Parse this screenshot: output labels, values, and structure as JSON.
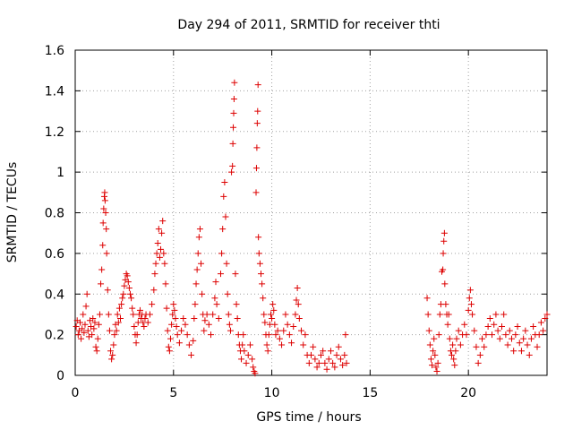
{
  "chart_data": {
    "type": "scatter",
    "title": "Day 294 of 2011, SRMTID for receiver thti",
    "xlabel": "GPS time / hours",
    "ylabel": "SRMTID / TECUs",
    "xlim": [
      0,
      24
    ],
    "ylim": [
      0,
      1.6
    ],
    "x_ticks": [
      0,
      5,
      10,
      15,
      20
    ],
    "x_tick_labels": [
      "0",
      "5",
      "10",
      "15",
      "20"
    ],
    "y_ticks": [
      0,
      0.2,
      0.4,
      0.6,
      0.8,
      1.0,
      1.2,
      1.4,
      1.6
    ],
    "y_tick_labels": [
      "0",
      "0.2",
      "0.4",
      "0.6",
      "0.8",
      "1",
      "1.2",
      "1.4",
      "1.6"
    ],
    "grid": true,
    "marker": "+",
    "color": "#dd0000",
    "series": [
      {
        "name": "SRMTID",
        "points": [
          [
            0.05,
            0.24
          ],
          [
            0.1,
            0.27
          ],
          [
            0.15,
            0.2
          ],
          [
            0.2,
            0.22
          ],
          [
            0.25,
            0.26
          ],
          [
            0.3,
            0.18
          ],
          [
            0.35,
            0.23
          ],
          [
            0.4,
            0.3
          ],
          [
            0.45,
            0.21
          ],
          [
            0.5,
            0.25
          ],
          [
            0.55,
            0.34
          ],
          [
            0.6,
            0.4
          ],
          [
            0.65,
            0.22
          ],
          [
            0.7,
            0.19
          ],
          [
            0.75,
            0.27
          ],
          [
            0.8,
            0.24
          ],
          [
            0.85,
            0.2
          ],
          [
            0.9,
            0.28
          ],
          [
            0.95,
            0.23
          ],
          [
            1.0,
            0.26
          ],
          [
            1.05,
            0.14
          ],
          [
            1.1,
            0.12
          ],
          [
            1.15,
            0.18
          ],
          [
            1.2,
            0.25
          ],
          [
            1.25,
            0.3
          ],
          [
            1.3,
            0.45
          ],
          [
            1.35,
            0.52
          ],
          [
            1.4,
            0.64
          ],
          [
            1.42,
            0.75
          ],
          [
            1.45,
            0.82
          ],
          [
            1.48,
            0.88
          ],
          [
            1.5,
            0.9
          ],
          [
            1.52,
            0.86
          ],
          [
            1.55,
            0.8
          ],
          [
            1.58,
            0.72
          ],
          [
            1.6,
            0.6
          ],
          [
            1.65,
            0.42
          ],
          [
            1.7,
            0.3
          ],
          [
            1.75,
            0.22
          ],
          [
            1.8,
            0.12
          ],
          [
            1.85,
            0.08
          ],
          [
            1.9,
            0.1
          ],
          [
            1.95,
            0.15
          ],
          [
            2.0,
            0.2
          ],
          [
            2.05,
            0.25
          ],
          [
            2.1,
            0.22
          ],
          [
            2.15,
            0.3
          ],
          [
            2.2,
            0.26
          ],
          [
            2.25,
            0.33
          ],
          [
            2.3,
            0.28
          ],
          [
            2.35,
            0.35
          ],
          [
            2.4,
            0.38
          ],
          [
            2.45,
            0.4
          ],
          [
            2.5,
            0.44
          ],
          [
            2.55,
            0.47
          ],
          [
            2.6,
            0.5
          ],
          [
            2.65,
            0.49
          ],
          [
            2.7,
            0.46
          ],
          [
            2.75,
            0.43
          ],
          [
            2.8,
            0.4
          ],
          [
            2.85,
            0.38
          ],
          [
            2.9,
            0.33
          ],
          [
            2.95,
            0.3
          ],
          [
            3.0,
            0.24
          ],
          [
            3.05,
            0.2
          ],
          [
            3.1,
            0.16
          ],
          [
            3.15,
            0.2
          ],
          [
            3.2,
            0.26
          ],
          [
            3.25,
            0.3
          ],
          [
            3.3,
            0.32
          ],
          [
            3.35,
            0.28
          ],
          [
            3.4,
            0.3
          ],
          [
            3.45,
            0.26
          ],
          [
            3.5,
            0.24
          ],
          [
            3.55,
            0.28
          ],
          [
            3.6,
            0.3
          ],
          [
            3.7,
            0.26
          ],
          [
            3.8,
            0.3
          ],
          [
            3.9,
            0.35
          ],
          [
            4.0,
            0.42
          ],
          [
            4.05,
            0.5
          ],
          [
            4.1,
            0.55
          ],
          [
            4.15,
            0.6
          ],
          [
            4.2,
            0.65
          ],
          [
            4.25,
            0.72
          ],
          [
            4.3,
            0.58
          ],
          [
            4.35,
            0.62
          ],
          [
            4.4,
            0.7
          ],
          [
            4.45,
            0.76
          ],
          [
            4.5,
            0.6
          ],
          [
            4.55,
            0.55
          ],
          [
            4.6,
            0.45
          ],
          [
            4.65,
            0.33
          ],
          [
            4.7,
            0.22
          ],
          [
            4.75,
            0.14
          ],
          [
            4.8,
            0.12
          ],
          [
            4.85,
            0.18
          ],
          [
            4.9,
            0.25
          ],
          [
            4.95,
            0.3
          ],
          [
            5.0,
            0.35
          ],
          [
            5.05,
            0.32
          ],
          [
            5.1,
            0.28
          ],
          [
            5.15,
            0.24
          ],
          [
            5.2,
            0.2
          ],
          [
            5.3,
            0.16
          ],
          [
            5.4,
            0.22
          ],
          [
            5.5,
            0.28
          ],
          [
            5.6,
            0.25
          ],
          [
            5.7,
            0.2
          ],
          [
            5.8,
            0.15
          ],
          [
            5.9,
            0.1
          ],
          [
            6.0,
            0.17
          ],
          [
            6.05,
            0.28
          ],
          [
            6.1,
            0.35
          ],
          [
            6.15,
            0.45
          ],
          [
            6.2,
            0.52
          ],
          [
            6.25,
            0.6
          ],
          [
            6.3,
            0.68
          ],
          [
            6.35,
            0.72
          ],
          [
            6.4,
            0.55
          ],
          [
            6.45,
            0.4
          ],
          [
            6.5,
            0.3
          ],
          [
            6.55,
            0.22
          ],
          [
            6.6,
            0.27
          ],
          [
            6.7,
            0.3
          ],
          [
            6.8,
            0.25
          ],
          [
            6.9,
            0.2
          ],
          [
            7.0,
            0.3
          ],
          [
            7.1,
            0.38
          ],
          [
            7.15,
            0.46
          ],
          [
            7.2,
            0.35
          ],
          [
            7.3,
            0.28
          ],
          [
            7.4,
            0.5
          ],
          [
            7.45,
            0.6
          ],
          [
            7.5,
            0.72
          ],
          [
            7.55,
            0.88
          ],
          [
            7.6,
            0.95
          ],
          [
            7.65,
            0.78
          ],
          [
            7.7,
            0.55
          ],
          [
            7.75,
            0.4
          ],
          [
            7.8,
            0.3
          ],
          [
            7.85,
            0.25
          ],
          [
            7.9,
            0.22
          ],
          [
            7.95,
            1.0
          ],
          [
            8.0,
            1.03
          ],
          [
            8.02,
            1.14
          ],
          [
            8.04,
            1.22
          ],
          [
            8.06,
            1.29
          ],
          [
            8.08,
            1.36
          ],
          [
            8.1,
            1.44
          ],
          [
            8.15,
            0.5
          ],
          [
            8.2,
            0.35
          ],
          [
            8.25,
            0.28
          ],
          [
            8.3,
            0.2
          ],
          [
            8.35,
            0.15
          ],
          [
            8.4,
            0.12
          ],
          [
            8.45,
            0.08
          ],
          [
            8.5,
            0.15
          ],
          [
            8.55,
            0.2
          ],
          [
            8.6,
            0.12
          ],
          [
            8.7,
            0.06
          ],
          [
            8.8,
            0.1
          ],
          [
            8.9,
            0.15
          ],
          [
            9.0,
            0.08
          ],
          [
            9.05,
            0.04
          ],
          [
            9.1,
            0.02
          ],
          [
            9.15,
            0.01
          ],
          [
            9.2,
            0.9
          ],
          [
            9.22,
            1.02
          ],
          [
            9.24,
            1.12
          ],
          [
            9.26,
            1.24
          ],
          [
            9.28,
            1.3
          ],
          [
            9.3,
            1.43
          ],
          [
            9.32,
            0.68
          ],
          [
            9.35,
            0.6
          ],
          [
            9.4,
            0.55
          ],
          [
            9.45,
            0.5
          ],
          [
            9.5,
            0.45
          ],
          [
            9.55,
            0.38
          ],
          [
            9.6,
            0.3
          ],
          [
            9.65,
            0.26
          ],
          [
            9.7,
            0.2
          ],
          [
            9.75,
            0.15
          ],
          [
            9.8,
            0.12
          ],
          [
            9.85,
            0.2
          ],
          [
            9.9,
            0.25
          ],
          [
            9.95,
            0.3
          ],
          [
            10.0,
            0.28
          ],
          [
            10.05,
            0.35
          ],
          [
            10.1,
            0.32
          ],
          [
            10.15,
            0.25
          ],
          [
            10.2,
            0.2
          ],
          [
            10.3,
            0.22
          ],
          [
            10.4,
            0.18
          ],
          [
            10.5,
            0.15
          ],
          [
            10.6,
            0.22
          ],
          [
            10.7,
            0.3
          ],
          [
            10.8,
            0.25
          ],
          [
            10.9,
            0.2
          ],
          [
            11.0,
            0.16
          ],
          [
            11.1,
            0.24
          ],
          [
            11.2,
            0.3
          ],
          [
            11.25,
            0.37
          ],
          [
            11.3,
            0.43
          ],
          [
            11.35,
            0.35
          ],
          [
            11.4,
            0.28
          ],
          [
            11.5,
            0.22
          ],
          [
            11.6,
            0.15
          ],
          [
            11.7,
            0.2
          ],
          [
            11.8,
            0.1
          ],
          [
            11.9,
            0.06
          ],
          [
            12.0,
            0.1
          ],
          [
            12.1,
            0.14
          ],
          [
            12.2,
            0.08
          ],
          [
            12.3,
            0.04
          ],
          [
            12.4,
            0.06
          ],
          [
            12.5,
            0.1
          ],
          [
            12.6,
            0.12
          ],
          [
            12.7,
            0.06
          ],
          [
            12.8,
            0.03
          ],
          [
            12.9,
            0.08
          ],
          [
            13.0,
            0.12
          ],
          [
            13.1,
            0.06
          ],
          [
            13.2,
            0.04
          ],
          [
            13.3,
            0.1
          ],
          [
            13.4,
            0.14
          ],
          [
            13.5,
            0.08
          ],
          [
            13.6,
            0.05
          ],
          [
            13.7,
            0.1
          ],
          [
            13.75,
            0.2
          ],
          [
            13.8,
            0.06
          ],
          [
            17.9,
            0.38
          ],
          [
            17.95,
            0.3
          ],
          [
            18.0,
            0.22
          ],
          [
            18.05,
            0.15
          ],
          [
            18.1,
            0.08
          ],
          [
            18.15,
            0.05
          ],
          [
            18.2,
            0.12
          ],
          [
            18.25,
            0.18
          ],
          [
            18.3,
            0.1
          ],
          [
            18.35,
            0.04
          ],
          [
            18.4,
            0.02
          ],
          [
            18.45,
            0.06
          ],
          [
            18.5,
            0.2
          ],
          [
            18.55,
            0.3
          ],
          [
            18.6,
            0.35
          ],
          [
            18.65,
            0.51
          ],
          [
            18.7,
            0.52
          ],
          [
            18.72,
            0.6
          ],
          [
            18.75,
            0.66
          ],
          [
            18.78,
            0.7
          ],
          [
            18.8,
            0.45
          ],
          [
            18.85,
            0.35
          ],
          [
            18.9,
            0.3
          ],
          [
            18.95,
            0.25
          ],
          [
            19.0,
            0.3
          ],
          [
            19.05,
            0.18
          ],
          [
            19.1,
            0.12
          ],
          [
            19.15,
            0.1
          ],
          [
            19.2,
            0.15
          ],
          [
            19.25,
            0.08
          ],
          [
            19.3,
            0.05
          ],
          [
            19.35,
            0.12
          ],
          [
            19.4,
            0.18
          ],
          [
            19.5,
            0.22
          ],
          [
            19.6,
            0.15
          ],
          [
            19.7,
            0.2
          ],
          [
            19.8,
            0.25
          ],
          [
            19.9,
            0.2
          ],
          [
            20.0,
            0.32
          ],
          [
            20.05,
            0.38
          ],
          [
            20.1,
            0.42
          ],
          [
            20.15,
            0.35
          ],
          [
            20.2,
            0.3
          ],
          [
            20.3,
            0.22
          ],
          [
            20.4,
            0.14
          ],
          [
            20.5,
            0.06
          ],
          [
            20.6,
            0.1
          ],
          [
            20.7,
            0.18
          ],
          [
            20.8,
            0.14
          ],
          [
            20.9,
            0.2
          ],
          [
            21.0,
            0.24
          ],
          [
            21.1,
            0.28
          ],
          [
            21.2,
            0.2
          ],
          [
            21.3,
            0.25
          ],
          [
            21.4,
            0.3
          ],
          [
            21.5,
            0.22
          ],
          [
            21.6,
            0.18
          ],
          [
            21.7,
            0.24
          ],
          [
            21.8,
            0.3
          ],
          [
            21.9,
            0.2
          ],
          [
            22.0,
            0.15
          ],
          [
            22.1,
            0.22
          ],
          [
            22.2,
            0.18
          ],
          [
            22.3,
            0.12
          ],
          [
            22.4,
            0.2
          ],
          [
            22.5,
            0.24
          ],
          [
            22.6,
            0.16
          ],
          [
            22.7,
            0.12
          ],
          [
            22.8,
            0.18
          ],
          [
            22.9,
            0.22
          ],
          [
            23.0,
            0.15
          ],
          [
            23.1,
            0.1
          ],
          [
            23.2,
            0.18
          ],
          [
            23.3,
            0.24
          ],
          [
            23.4,
            0.2
          ],
          [
            23.5,
            0.14
          ],
          [
            23.6,
            0.2
          ],
          [
            23.7,
            0.26
          ],
          [
            23.8,
            0.22
          ],
          [
            23.9,
            0.28
          ],
          [
            24.0,
            0.3
          ]
        ]
      }
    ]
  }
}
